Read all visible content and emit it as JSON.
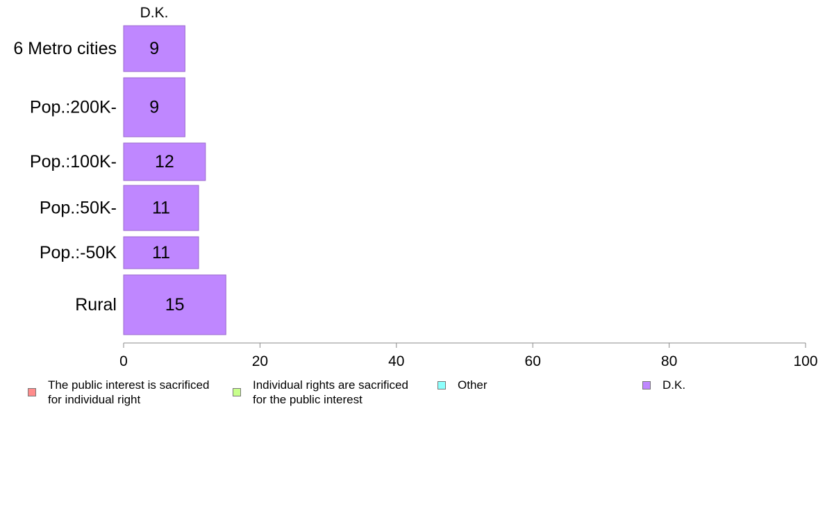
{
  "chart_data": {
    "type": "bar",
    "orientation": "horizontal",
    "panel_title": "D.K.",
    "categories": [
      "6 Metro cities",
      "Pop.:200K-",
      "Pop.:100K-",
      "Pop.:50K-",
      "Pop.:-50K",
      "Rural"
    ],
    "series": [
      {
        "name": "D.K.",
        "color": "#bf87ff",
        "values": [
          9,
          9,
          12,
          11,
          11,
          15
        ]
      }
    ],
    "value_labels": [
      "9",
      "9",
      "12",
      "11",
      "11",
      "15"
    ],
    "xlim": [
      0,
      100
    ],
    "xticks": [
      0,
      20,
      40,
      60,
      80,
      100
    ],
    "xtick_labels": [
      "0",
      "20",
      "40",
      "60",
      "80",
      "100"
    ],
    "grid": false,
    "legend_position": "bottom"
  },
  "legend": [
    {
      "label": "The public interest is sacrificed\nfor individual right",
      "color": "#ff8c8c"
    },
    {
      "label": "Individual rights are sacrificed\nfor the public interest",
      "color": "#c8ff8c"
    },
    {
      "label": "Other",
      "color": "#8cfffc"
    },
    {
      "label": "D.K.",
      "color": "#bf87ff"
    }
  ]
}
